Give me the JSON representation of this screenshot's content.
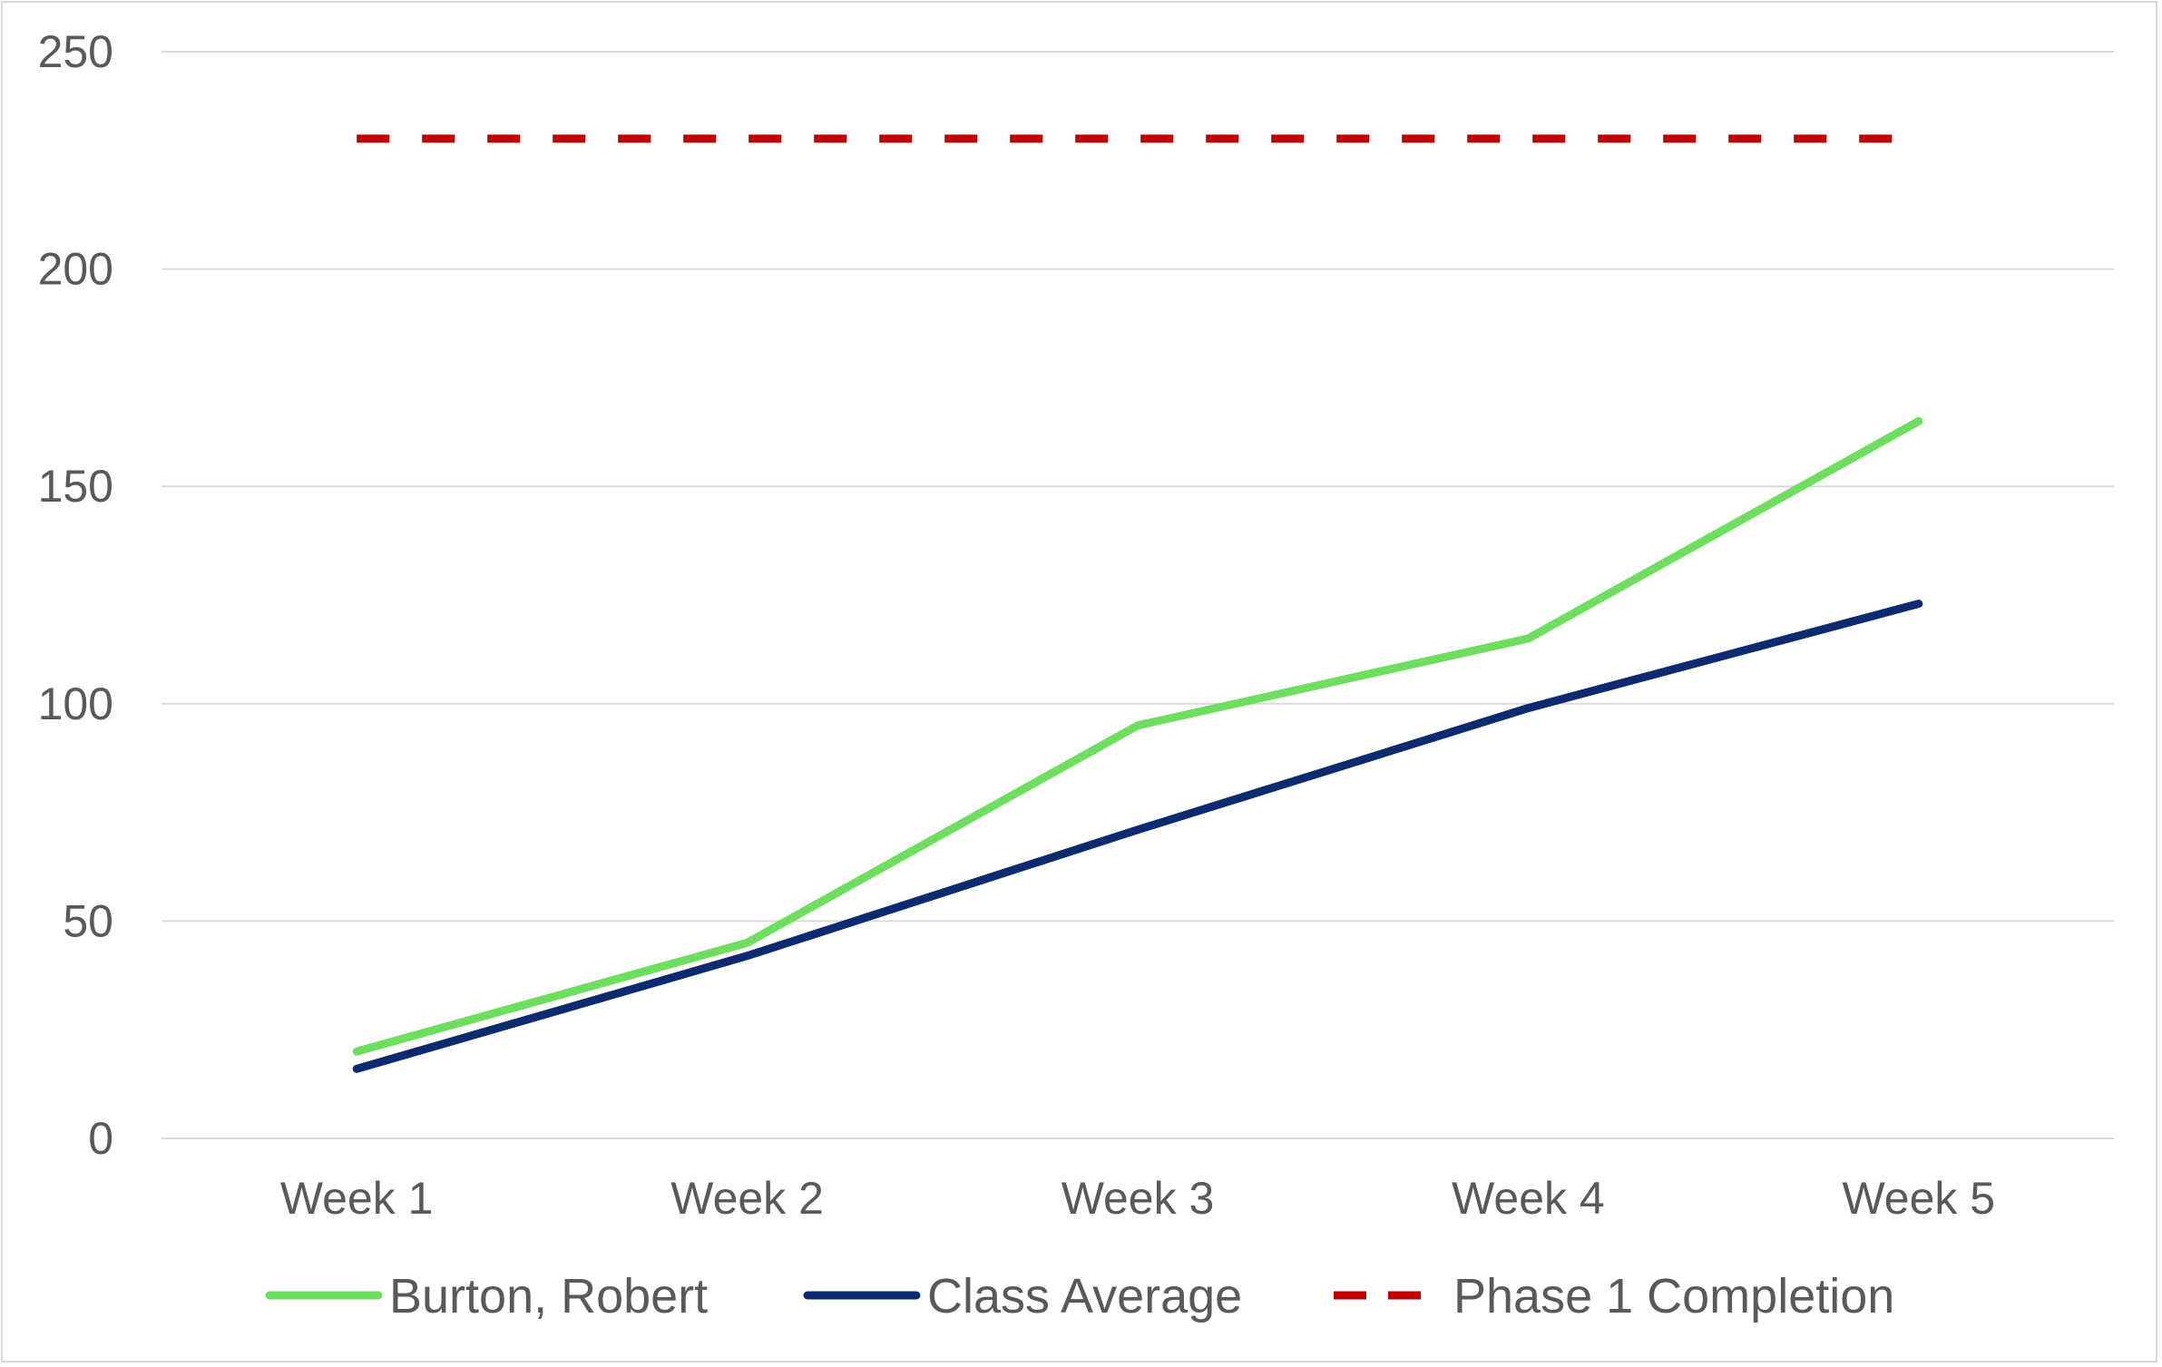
{
  "chart_data": {
    "type": "line",
    "title": "",
    "xlabel": "",
    "ylabel": "",
    "categories": [
      "Week 1",
      "Week 2",
      "Week 3",
      "Week 4",
      "Week 5"
    ],
    "ylim": [
      0,
      250
    ],
    "yticks": [
      0,
      50,
      100,
      150,
      200,
      250
    ],
    "grid": true,
    "legend_position": "bottom",
    "series": [
      {
        "name": "Burton, Robert",
        "values": [
          20,
          45,
          95,
          115,
          165
        ],
        "color": "#6dde5e",
        "dash": "solid"
      },
      {
        "name": "Class Average",
        "values": [
          16,
          42,
          71,
          99,
          123
        ],
        "color": "#0b2a6f",
        "dash": "solid"
      },
      {
        "name": "Phase 1 Completion",
        "values": [
          230,
          230,
          230,
          230,
          230
        ],
        "color": "#c00000",
        "dash": "dashed"
      }
    ]
  }
}
